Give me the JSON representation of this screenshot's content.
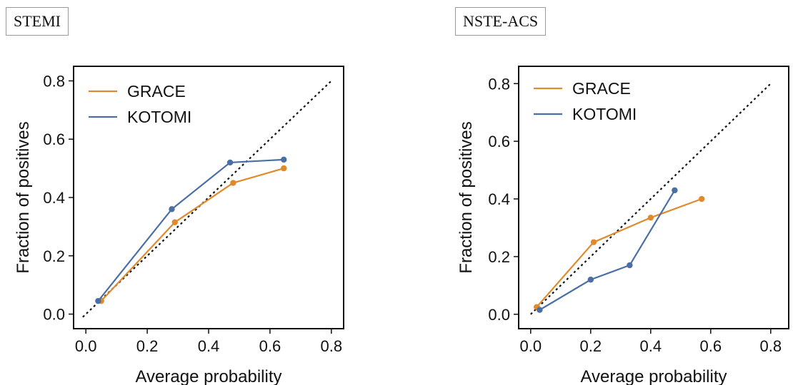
{
  "panels": [
    {
      "label": "STEMI"
    },
    {
      "label": "NSTE-ACS"
    }
  ],
  "chart_data": [
    {
      "type": "line",
      "title": "STEMI",
      "xlabel": "Average probability",
      "ylabel": "Fraction of positives",
      "xlim": [
        -0.04,
        0.84
      ],
      "ylim": [
        -0.05,
        0.85
      ],
      "xticks": [
        "0.0",
        "0.2",
        "0.4",
        "0.6",
        "0.8"
      ],
      "yticks": [
        "0.0",
        "0.2",
        "0.4",
        "0.6",
        "0.8"
      ],
      "reference_line": {
        "style": "dotted",
        "color": "#111111",
        "x": [
          -0.01,
          0.8
        ],
        "y": [
          -0.01,
          0.8
        ]
      },
      "legend": "top-left",
      "grid": false,
      "series": [
        {
          "name": "GRACE",
          "color": "#E08A2E",
          "x": [
            0.05,
            0.29,
            0.48,
            0.645
          ],
          "y": [
            0.045,
            0.315,
            0.45,
            0.5
          ]
        },
        {
          "name": "KOTOMI",
          "color": "#4A6FA5",
          "x": [
            0.04,
            0.28,
            0.47,
            0.645
          ],
          "y": [
            0.045,
            0.36,
            0.52,
            0.53
          ]
        }
      ]
    },
    {
      "type": "line",
      "title": "NSTE-ACS",
      "xlabel": "Average probability",
      "ylabel": "Fraction of positives",
      "xlim": [
        -0.04,
        0.86
      ],
      "ylim": [
        -0.05,
        0.86
      ],
      "xticks": [
        "0.0",
        "0.2",
        "0.4",
        "0.6",
        "0.8"
      ],
      "yticks": [
        "0.0",
        "0.2",
        "0.4",
        "0.6",
        "0.8"
      ],
      "reference_line": {
        "style": "dotted",
        "color": "#111111",
        "x": [
          0.0,
          0.8
        ],
        "y": [
          0.0,
          0.8
        ]
      },
      "legend": "top-left",
      "grid": false,
      "series": [
        {
          "name": "GRACE",
          "color": "#E08A2E",
          "x": [
            0.02,
            0.21,
            0.4,
            0.57
          ],
          "y": [
            0.025,
            0.25,
            0.335,
            0.4
          ]
        },
        {
          "name": "KOTOMI",
          "color": "#4A6FA5",
          "x": [
            0.03,
            0.2,
            0.33,
            0.48
          ],
          "y": [
            0.015,
            0.12,
            0.17,
            0.43
          ]
        }
      ]
    }
  ]
}
